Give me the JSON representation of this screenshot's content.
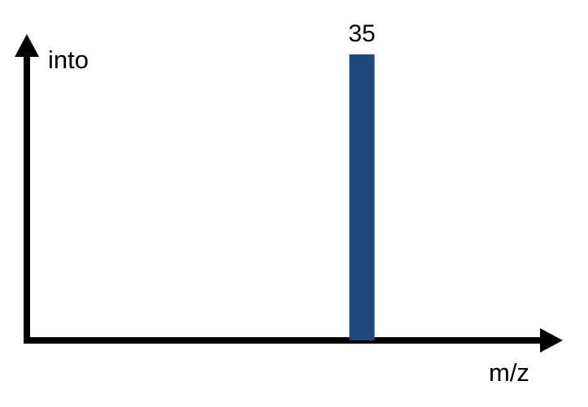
{
  "chart_data": {
    "type": "bar",
    "x": [
      35
    ],
    "values": [
      1
    ],
    "data_labels": [
      "35"
    ],
    "xlabel": "m/z",
    "ylabel": "into",
    "axes": {
      "arrows": true,
      "ticks": false,
      "grid": false
    },
    "legend": "none"
  },
  "colors": {
    "bar": "#1f497d",
    "axis": "#000000",
    "background": "#ffffff"
  }
}
